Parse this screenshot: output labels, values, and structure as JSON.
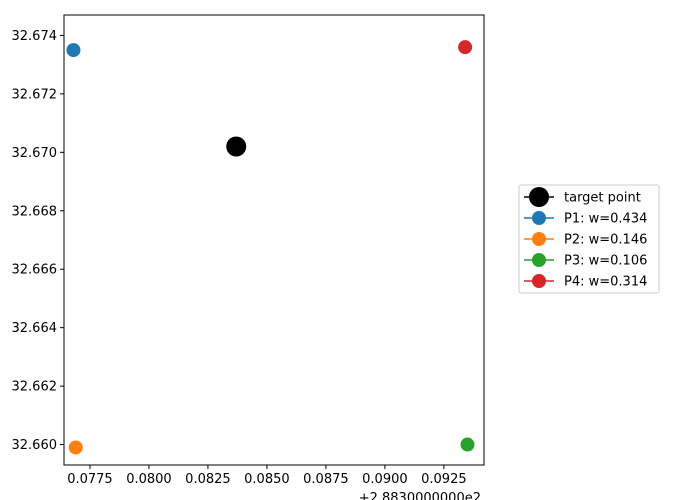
{
  "chart_data": {
    "type": "scatter",
    "title": "",
    "xlabel": "",
    "ylabel": "",
    "xlim": [
      0.0764,
      0.0942
    ],
    "ylim": [
      32.6593,
      32.6747
    ],
    "x_offset_label": "+2.8830000000e2",
    "x_ticks": [
      0.0775,
      0.08,
      0.0825,
      0.085,
      0.0875,
      0.09,
      0.0925
    ],
    "x_tick_labels": [
      "0.0775",
      "0.0800",
      "0.0825",
      "0.0850",
      "0.0875",
      "0.0900",
      "0.0925"
    ],
    "y_ticks": [
      32.66,
      32.662,
      32.664,
      32.666,
      32.668,
      32.67,
      32.672,
      32.674
    ],
    "y_tick_labels": [
      "32.660",
      "32.662",
      "32.664",
      "32.666",
      "32.668",
      "32.670",
      "32.672",
      "32.674"
    ],
    "grid": false,
    "legend_position": "center-right-outside",
    "series": [
      {
        "name": "target point",
        "color": "#000000",
        "marker_scale": "large",
        "points": [
          {
            "x": 0.0837,
            "y": 32.6702
          }
        ]
      },
      {
        "name": "P1: w=0.434",
        "color": "#1f77b4",
        "marker_scale": "normal",
        "points": [
          {
            "x": 0.0768,
            "y": 32.6735
          }
        ]
      },
      {
        "name": "P2: w=0.146",
        "color": "#ff7f0e",
        "marker_scale": "normal",
        "points": [
          {
            "x": 0.0769,
            "y": 32.6599
          }
        ]
      },
      {
        "name": "P3: w=0.106",
        "color": "#2ca02c",
        "marker_scale": "normal",
        "points": [
          {
            "x": 0.0935,
            "y": 32.66
          }
        ]
      },
      {
        "name": "P4: w=0.314",
        "color": "#d62728",
        "marker_scale": "normal",
        "points": [
          {
            "x": 0.0934,
            "y": 32.6736
          }
        ]
      }
    ]
  }
}
